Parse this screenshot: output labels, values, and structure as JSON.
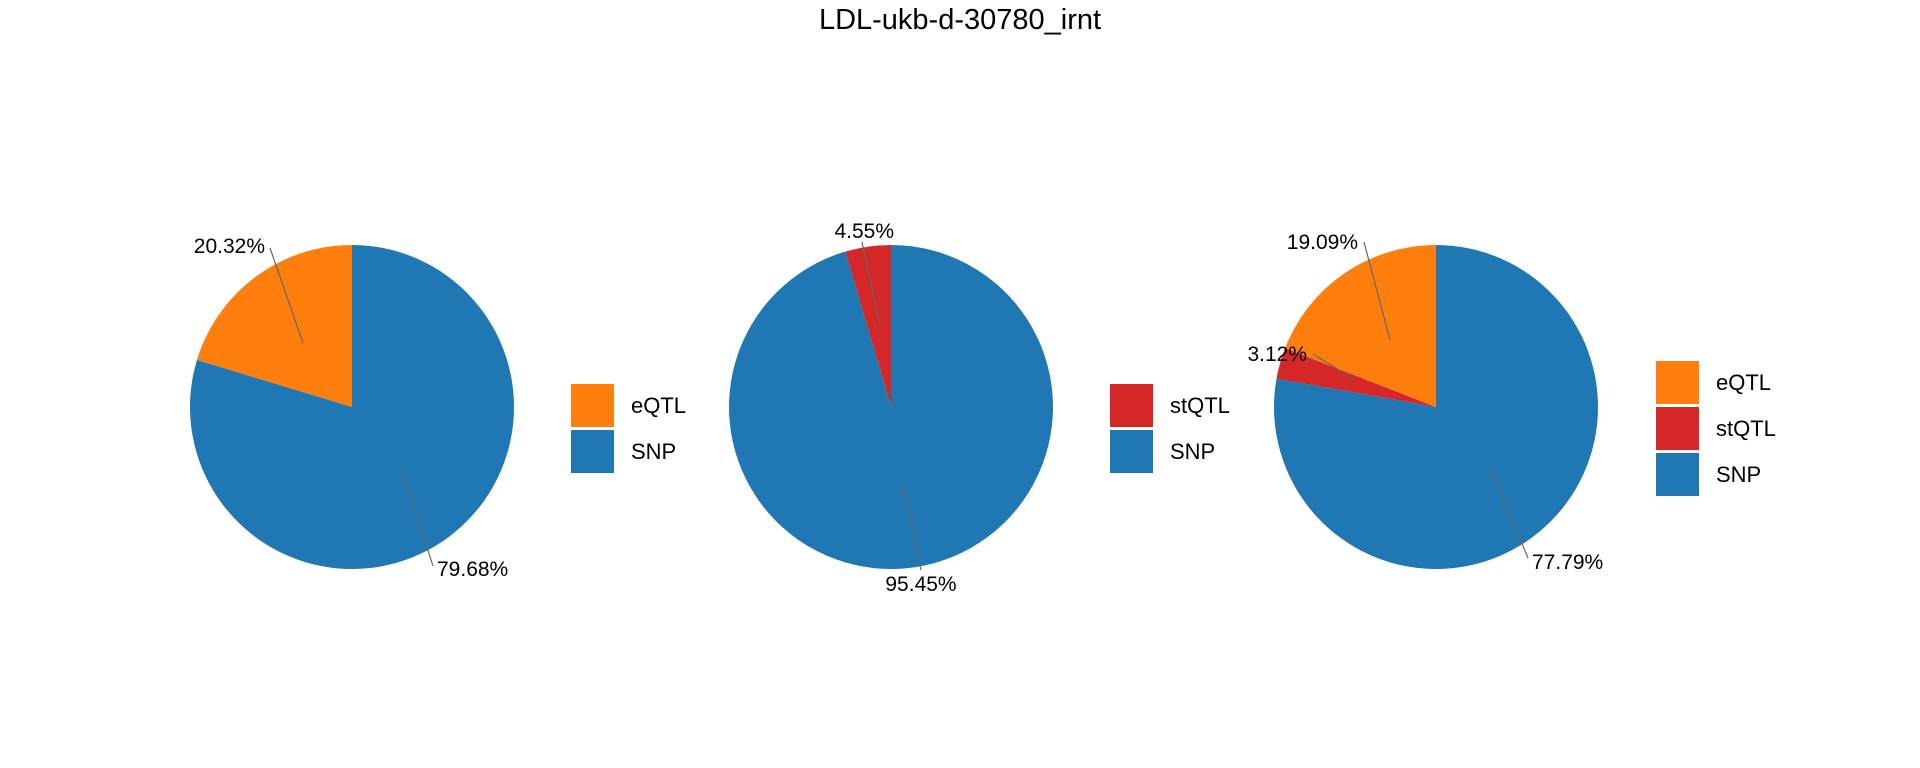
{
  "title": "LDL-ukb-d-30780_irnt",
  "chart_data": [
    {
      "type": "pie",
      "slices": [
        {
          "label": "eQTL",
          "value": 20.32,
          "text": "20.32%",
          "color": "#ff7f0e"
        },
        {
          "label": "SNP",
          "value": 79.68,
          "text": "79.68%",
          "color": "#1f77b4"
        }
      ],
      "legend": [
        "eQTL",
        "SNP"
      ]
    },
    {
      "type": "pie",
      "slices": [
        {
          "label": "stQTL",
          "value": 4.55,
          "text": "4.55%",
          "color": "#d62728"
        },
        {
          "label": "SNP",
          "value": 95.45,
          "text": "95.45%",
          "color": "#1f77b4"
        }
      ],
      "legend": [
        "stQTL",
        "SNP"
      ]
    },
    {
      "type": "pie",
      "slices": [
        {
          "label": "eQTL",
          "value": 19.09,
          "text": "19.09%",
          "color": "#ff7f0e"
        },
        {
          "label": "stQTL",
          "value": 3.12,
          "text": "3.12%",
          "color": "#d62728"
        },
        {
          "label": "SNP",
          "value": 77.79,
          "text": "77.79%",
          "color": "#1f77b4"
        }
      ],
      "legend": [
        "eQTL",
        "stQTL",
        "SNP"
      ]
    }
  ]
}
